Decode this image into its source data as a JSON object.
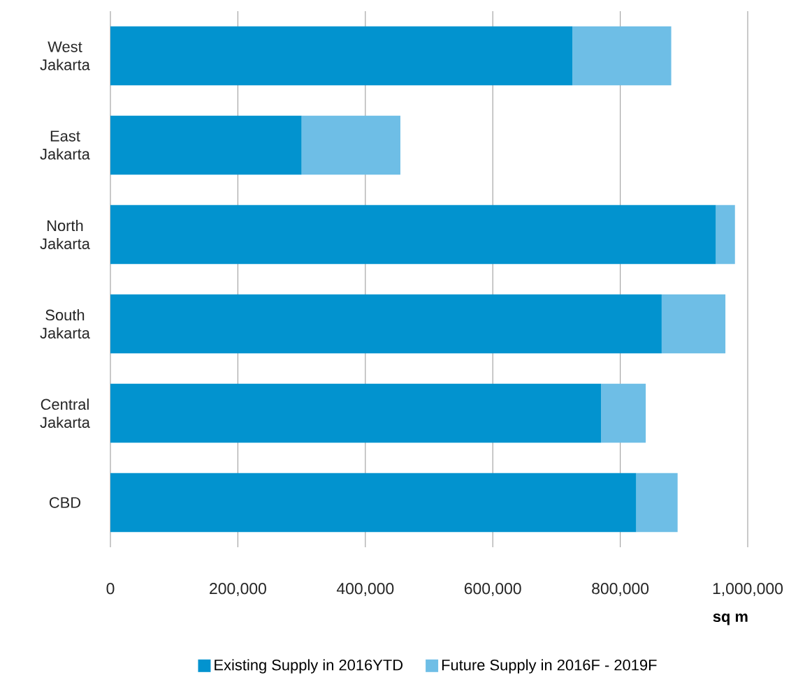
{
  "chart_data": {
    "type": "bar",
    "orientation": "horizontal",
    "stacked": true,
    "categories": [
      "West Jakarta",
      "East Jakarta",
      "North Jakarta",
      "South Jakarta",
      "Central Jakarta",
      "CBD"
    ],
    "series": [
      {
        "name": "Existing Supply in 2016YTD",
        "color": "#0293cf",
        "values": [
          725000,
          300000,
          950000,
          865000,
          770000,
          825000
        ]
      },
      {
        "name": "Future Supply in 2016F - 2019F",
        "color": "#6ebee6",
        "values": [
          155000,
          155000,
          30000,
          100000,
          70000,
          65000
        ]
      }
    ],
    "xlabel": "sq m",
    "xlim": [
      0,
      1000000
    ],
    "xticks": [
      0,
      {
        "value": 200000,
        "label": "200,000"
      },
      {
        "value": 400000,
        "label": "400,000"
      },
      {
        "value": 600000,
        "label": "600,000"
      },
      {
        "value": 800000,
        "label": "800,000"
      },
      {
        "value": 1000000,
        "label": "1,000,000"
      }
    ],
    "grid": "x",
    "legend": "bottom"
  }
}
